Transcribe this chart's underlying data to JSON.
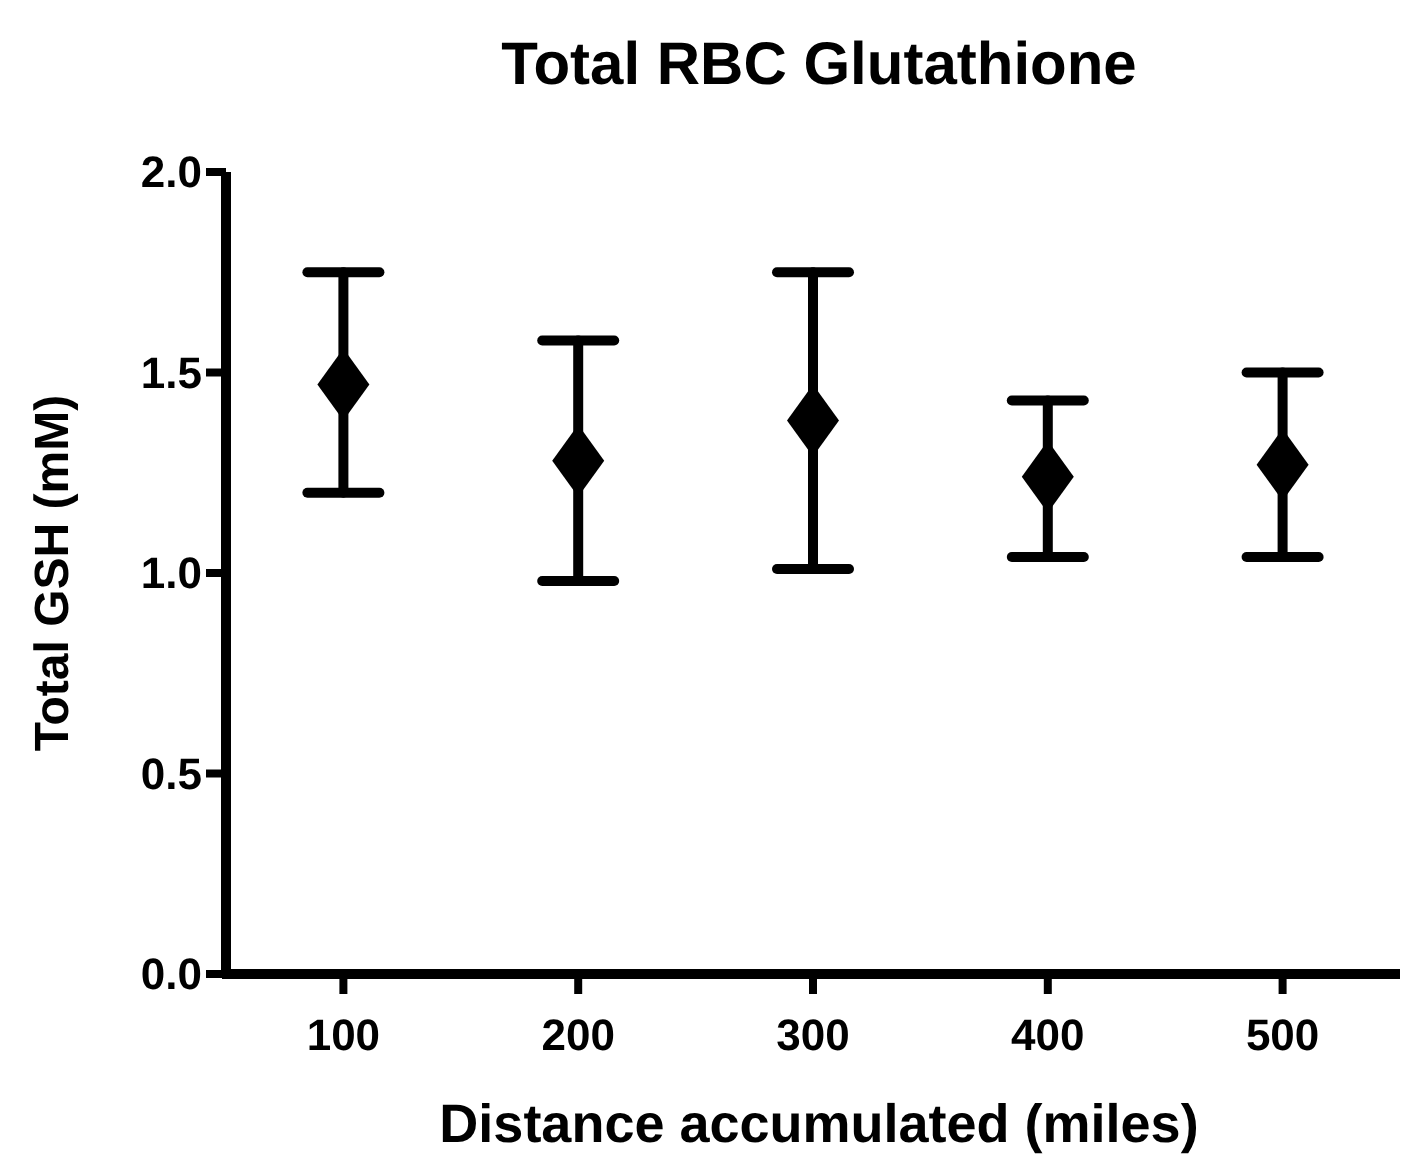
{
  "chart_data": {
    "type": "scatter",
    "title": "Total RBC Glutathione",
    "xlabel": "Distance accumulated (miles)",
    "ylabel": "Total GSH (mM)",
    "categories": [
      "100",
      "200",
      "300",
      "400",
      "500"
    ],
    "series": [
      {
        "color": "#000000",
        "values": [
          1.47,
          1.28,
          1.38,
          1.24,
          1.27
        ],
        "errors": [
          [
            1.2,
            1.75
          ],
          [
            0.98,
            1.58
          ],
          [
            1.01,
            1.75
          ],
          [
            1.04,
            1.43
          ],
          [
            1.04,
            1.5
          ]
        ]
      }
    ],
    "ylim": [
      0,
      2
    ],
    "yticks": [
      {
        "value": 0,
        "label": "0.0"
      },
      {
        "value": 0.5,
        "label": "0.5"
      },
      {
        "value": 1,
        "label": "1.0"
      },
      {
        "value": 1.5,
        "label": "1.5"
      },
      {
        "value": 2,
        "label": "2.0"
      }
    ],
    "marker": "diamond",
    "grid": false
  }
}
